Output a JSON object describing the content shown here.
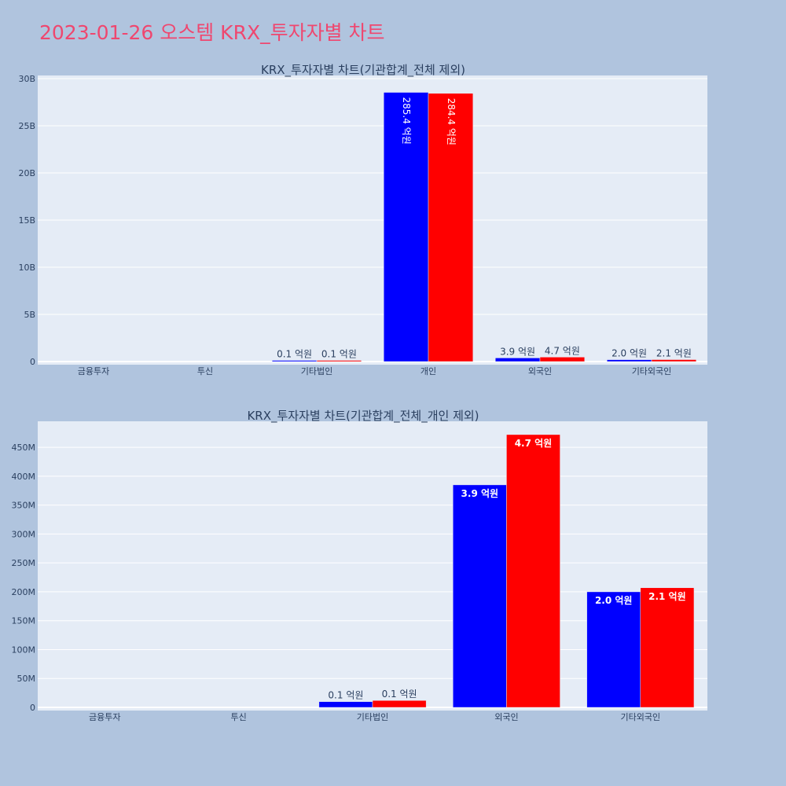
{
  "page_title": "2023-01-26 오스템 KRX_투자자별 차트",
  "colors": {
    "background": "#b0c4de",
    "plot_background": "#e5ecf6",
    "title": "#ef476f",
    "series_a": "#0000ff",
    "series_b": "#ff0000",
    "text": "#2a3f5f"
  },
  "chart_data": [
    {
      "type": "bar",
      "title": "KRX_투자자별 차트(기관합계_전체 제외)",
      "categories": [
        "금융투자",
        "투신",
        "기타법인",
        "개인",
        "외국인",
        "기타외국인"
      ],
      "ylim": [
        0,
        30000000000
      ],
      "yticks": [
        0,
        5000000000,
        10000000000,
        15000000000,
        20000000000,
        25000000000,
        30000000000
      ],
      "ytick_labels": [
        "0",
        "5B",
        "10B",
        "15B",
        "20B",
        "25B",
        "30B"
      ],
      "grid": true,
      "series": [
        {
          "color": "#0000ff",
          "values": [
            0,
            0,
            10000000,
            28540000000,
            385000000,
            200000000
          ],
          "labels": [
            "",
            "",
            "0.1 억원",
            "285.4 억원",
            "3.9 억원",
            "2.0 억원"
          ]
        },
        {
          "color": "#ff0000",
          "values": [
            0,
            0,
            12000000,
            28440000000,
            472000000,
            207000000
          ],
          "labels": [
            "",
            "",
            "0.1 억원",
            "284.4 억원",
            "4.7 억원",
            "2.1 억원"
          ]
        }
      ]
    },
    {
      "type": "bar",
      "title": "KRX_투자자별 차트(기관합계_전체_개인 제외)",
      "categories": [
        "금융투자",
        "투신",
        "기타법인",
        "외국인",
        "기타외국인"
      ],
      "ylim": [
        0,
        495000000
      ],
      "yticks": [
        0,
        50000000,
        100000000,
        150000000,
        200000000,
        250000000,
        300000000,
        350000000,
        400000000,
        450000000
      ],
      "ytick_labels": [
        "0",
        "50M",
        "100M",
        "150M",
        "200M",
        "250M",
        "300M",
        "350M",
        "400M",
        "450M"
      ],
      "grid": true,
      "series": [
        {
          "color": "#0000ff",
          "values": [
            0,
            0,
            10000000,
            385000000,
            200000000
          ],
          "labels": [
            "",
            "",
            "0.1 억원",
            "3.9 억원",
            "2.0 억원"
          ]
        },
        {
          "color": "#ff0000",
          "values": [
            0,
            0,
            12000000,
            472000000,
            207000000
          ],
          "labels": [
            "",
            "",
            "0.1 억원",
            "4.7 억원",
            "2.1 억원"
          ]
        }
      ]
    }
  ]
}
